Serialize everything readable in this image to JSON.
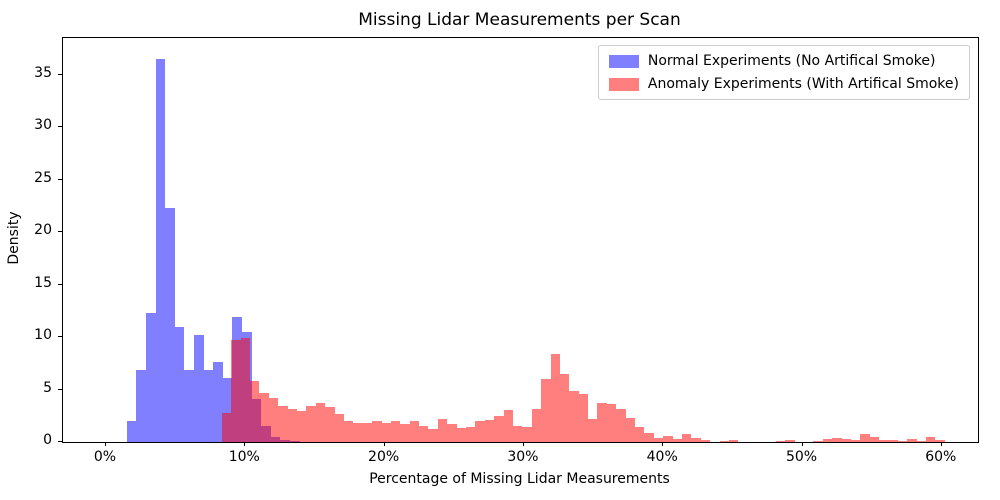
{
  "chart_data": {
    "type": "bar",
    "subtype": "overlapping-density-histogram",
    "title": "Missing Lidar Measurements per Scan",
    "xlabel": "Percentage of Missing Lidar Measurements",
    "ylabel": "Density",
    "xlim": [
      -3.09,
      62.6
    ],
    "ylim": [
      0,
      38.5
    ],
    "x_unit": "percent",
    "grid": false,
    "xticks": [
      {
        "value": 0,
        "label": "0%"
      },
      {
        "value": 10,
        "label": "10%"
      },
      {
        "value": 20,
        "label": "20%"
      },
      {
        "value": 30,
        "label": "30%"
      },
      {
        "value": 40,
        "label": "40%"
      },
      {
        "value": 50,
        "label": "50%"
      },
      {
        "value": 60,
        "label": "60%"
      }
    ],
    "yticks": [
      {
        "value": 0,
        "label": "0"
      },
      {
        "value": 5,
        "label": "5"
      },
      {
        "value": 10,
        "label": "10"
      },
      {
        "value": 15,
        "label": "15"
      },
      {
        "value": 20,
        "label": "20"
      },
      {
        "value": 25,
        "label": "25"
      },
      {
        "value": 30,
        "label": "30"
      },
      {
        "value": 35,
        "label": "35"
      }
    ],
    "colors": {
      "normal_fill": "#0000FF80",
      "anomaly_fill": "#FF000080",
      "normal_on_white": "#8080FF",
      "anomaly_on_white": "#FF8080",
      "overlap": "#BF3F7F",
      "axis": "#000000",
      "legend_border": "#CCCCCC"
    },
    "legend": {
      "position": "upper right",
      "labels": [
        "Normal Experiments (No Artifical Smoke)",
        "Anomaly Experiments (With Artifical Smoke)"
      ]
    },
    "series": [
      {
        "name": "Normal Experiments (No Artifical Smoke)",
        "color_key": "normal_fill",
        "bin_start_pct": 1.49,
        "bin_width_pct": 0.689,
        "heights": [
          2.0,
          6.9,
          12.3,
          36.5,
          22.3,
          11.0,
          6.9,
          10.2,
          6.9,
          7.6,
          6.1,
          11.9,
          10.5,
          4.1,
          1.5,
          0.5,
          0.2,
          0.1
        ]
      },
      {
        "name": "Anomaly Experiments (With Artifical Smoke)",
        "color_key": "anomaly_fill",
        "bin_start_pct": 8.32,
        "bin_width_pct": 0.674,
        "heights": [
          2.8,
          9.75,
          9.9,
          5.85,
          4.7,
          4.2,
          3.4,
          3.1,
          2.95,
          3.4,
          3.75,
          3.35,
          2.7,
          2.05,
          1.85,
          1.85,
          2.0,
          1.85,
          2.0,
          1.7,
          2.0,
          1.5,
          1.2,
          2.15,
          1.7,
          1.35,
          1.4,
          2.0,
          2.1,
          2.5,
          3.05,
          1.5,
          1.4,
          3.1,
          6.0,
          8.35,
          6.45,
          4.9,
          4.55,
          2.15,
          3.75,
          3.6,
          3.1,
          2.3,
          1.4,
          0.9,
          0.4,
          0.55,
          0.3,
          0.8,
          0.35,
          0.15,
          0,
          0.05,
          0.15,
          0,
          0,
          0,
          0,
          0.1,
          0.15,
          0,
          0,
          0.05,
          0.3,
          0.35,
          0.3,
          0.15,
          0.75,
          0.5,
          0.15,
          0.15,
          0.1,
          0.3,
          0.1,
          0.5,
          0.2
        ]
      }
    ]
  }
}
